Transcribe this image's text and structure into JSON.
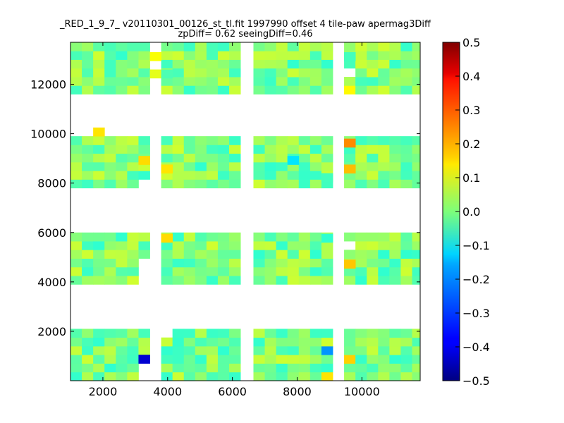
{
  "chart_data": {
    "type": "heatmap",
    "title_lines": [
      "_RED_1_9_7_ v20110301_00126_st_tl.fit 1997990 offset 4 tile-paw apermag3Diff",
      "zpDiff= 0.62 seeingDiff=0.46"
    ],
    "xlabel": "",
    "ylabel": "",
    "xlim": [
      1000,
      11800
    ],
    "ylim": [
      0,
      13700
    ],
    "x_ticks": [
      2000,
      4000,
      6000,
      8000,
      10000
    ],
    "x_tick_labels": [
      "2000",
      "4000",
      "6000",
      "8000",
      "10000"
    ],
    "y_ticks": [
      2000,
      4000,
      6000,
      8000,
      10000,
      12000
    ],
    "y_tick_labels": [
      "2000",
      "4000",
      "6000",
      "8000",
      "10000",
      "12000"
    ],
    "colorbar": {
      "min": -0.5,
      "max": 0.5,
      "colormap": "jet",
      "ticks": [
        0.5,
        0.4,
        0.3,
        0.2,
        0.1,
        0.0,
        -0.1,
        -0.2,
        -0.3,
        -0.4,
        -0.5
      ],
      "tick_labels": [
        "0.5",
        "0.4",
        "0.3",
        "0.2",
        "0.1",
        "0.0",
        "−0.1",
        "−0.2",
        "−0.3",
        "−0.4",
        "−0.5"
      ]
    },
    "grid": false,
    "cell_size": [
      350,
      350
    ],
    "x_columns": [
      1000,
      1350,
      1700,
      2050,
      2400,
      2750,
      3100,
      3800,
      4150,
      4500,
      4850,
      5200,
      5550,
      5900,
      6650,
      7000,
      7350,
      7700,
      8050,
      8400,
      8750,
      9100,
      9650,
      10000,
      10350,
      10700,
      11050,
      11400
    ],
    "tile_blocks": [
      {
        "x_start": 1000,
        "x_end": 3450,
        "y_start": 0,
        "y_end": 2100
      },
      {
        "x_start": 1000,
        "x_end": 3450,
        "y_start": 3900,
        "y_end": 6000
      },
      {
        "x_start": 1000,
        "x_end": 3450,
        "y_start": 7800,
        "y_end": 9900
      },
      {
        "x_start": 1000,
        "x_end": 3450,
        "y_start": 11600,
        "y_end": 13700
      },
      {
        "x_start": 3800,
        "x_end": 6250,
        "y_start": 0,
        "y_end": 2100
      },
      {
        "x_start": 3800,
        "x_end": 6250,
        "y_start": 3900,
        "y_end": 6000
      },
      {
        "x_start": 3800,
        "x_end": 6250,
        "y_start": 7800,
        "y_end": 9900
      },
      {
        "x_start": 3800,
        "x_end": 6250,
        "y_start": 11600,
        "y_end": 13700
      },
      {
        "x_start": 6650,
        "x_end": 9100,
        "y_start": 0,
        "y_end": 2100
      },
      {
        "x_start": 6650,
        "x_end": 9100,
        "y_start": 3900,
        "y_end": 6000
      },
      {
        "x_start": 6650,
        "x_end": 9100,
        "y_start": 7800,
        "y_end": 9900
      },
      {
        "x_start": 6650,
        "x_end": 9100,
        "y_start": 11600,
        "y_end": 13700
      },
      {
        "x_start": 9450,
        "x_end": 11800,
        "y_start": 0,
        "y_end": 2100
      },
      {
        "x_start": 9450,
        "x_end": 11800,
        "y_start": 3900,
        "y_end": 6000
      },
      {
        "x_start": 9450,
        "x_end": 11800,
        "y_start": 7800,
        "y_end": 9900
      },
      {
        "x_start": 9450,
        "x_end": 11800,
        "y_start": 11600,
        "y_end": 13700
      }
    ],
    "base_value_range": [
      -0.08,
      0.08
    ],
    "missing_cells": [
      [
        3100,
        0,
        350,
        1050
      ],
      [
        3100,
        3900,
        350,
        1050
      ],
      [
        3100,
        7800,
        350,
        350
      ],
      [
        3450,
        12250,
        350,
        1400
      ],
      [
        3800,
        1750,
        350,
        350
      ],
      [
        9100,
        350,
        350,
        350
      ],
      [
        9100,
        12950,
        350,
        350
      ],
      [
        9450,
        5250,
        350,
        350
      ],
      [
        9450,
        12250,
        350,
        350
      ]
    ],
    "extra_cells": [
      {
        "x": 1700,
        "y": 9900,
        "value": 0.15
      },
      {
        "x": 3450,
        "y": 12250,
        "value": 0.1
      },
      {
        "x": 3450,
        "y": 12950,
        "value": 0.12
      }
    ],
    "highlight_cells": [
      {
        "x": 3100,
        "y": 700,
        "value": -0.42
      },
      {
        "x": 3800,
        "y": 700,
        "value": -0.06
      },
      {
        "x": 3100,
        "y": 8750,
        "value": 0.16
      },
      {
        "x": 3800,
        "y": 8400,
        "value": 0.15
      },
      {
        "x": 3800,
        "y": 5600,
        "value": 0.16
      },
      {
        "x": 3800,
        "y": 12250,
        "value": -0.05
      },
      {
        "x": 7700,
        "y": 8750,
        "value": -0.15
      },
      {
        "x": 8750,
        "y": 5600,
        "value": -0.08
      },
      {
        "x": 8750,
        "y": 8050,
        "value": -0.06
      },
      {
        "x": 8750,
        "y": 1050,
        "value": -0.23
      },
      {
        "x": 8750,
        "y": 0,
        "value": 0.15
      },
      {
        "x": 9450,
        "y": 9450,
        "value": 0.24
      },
      {
        "x": 9450,
        "y": 8400,
        "value": 0.19
      },
      {
        "x": 9450,
        "y": 4550,
        "value": 0.18
      },
      {
        "x": 9450,
        "y": 700,
        "value": 0.17
      },
      {
        "x": 9450,
        "y": 11600,
        "value": 0.13
      },
      {
        "x": 9450,
        "y": 12950,
        "value": -0.06
      }
    ]
  }
}
